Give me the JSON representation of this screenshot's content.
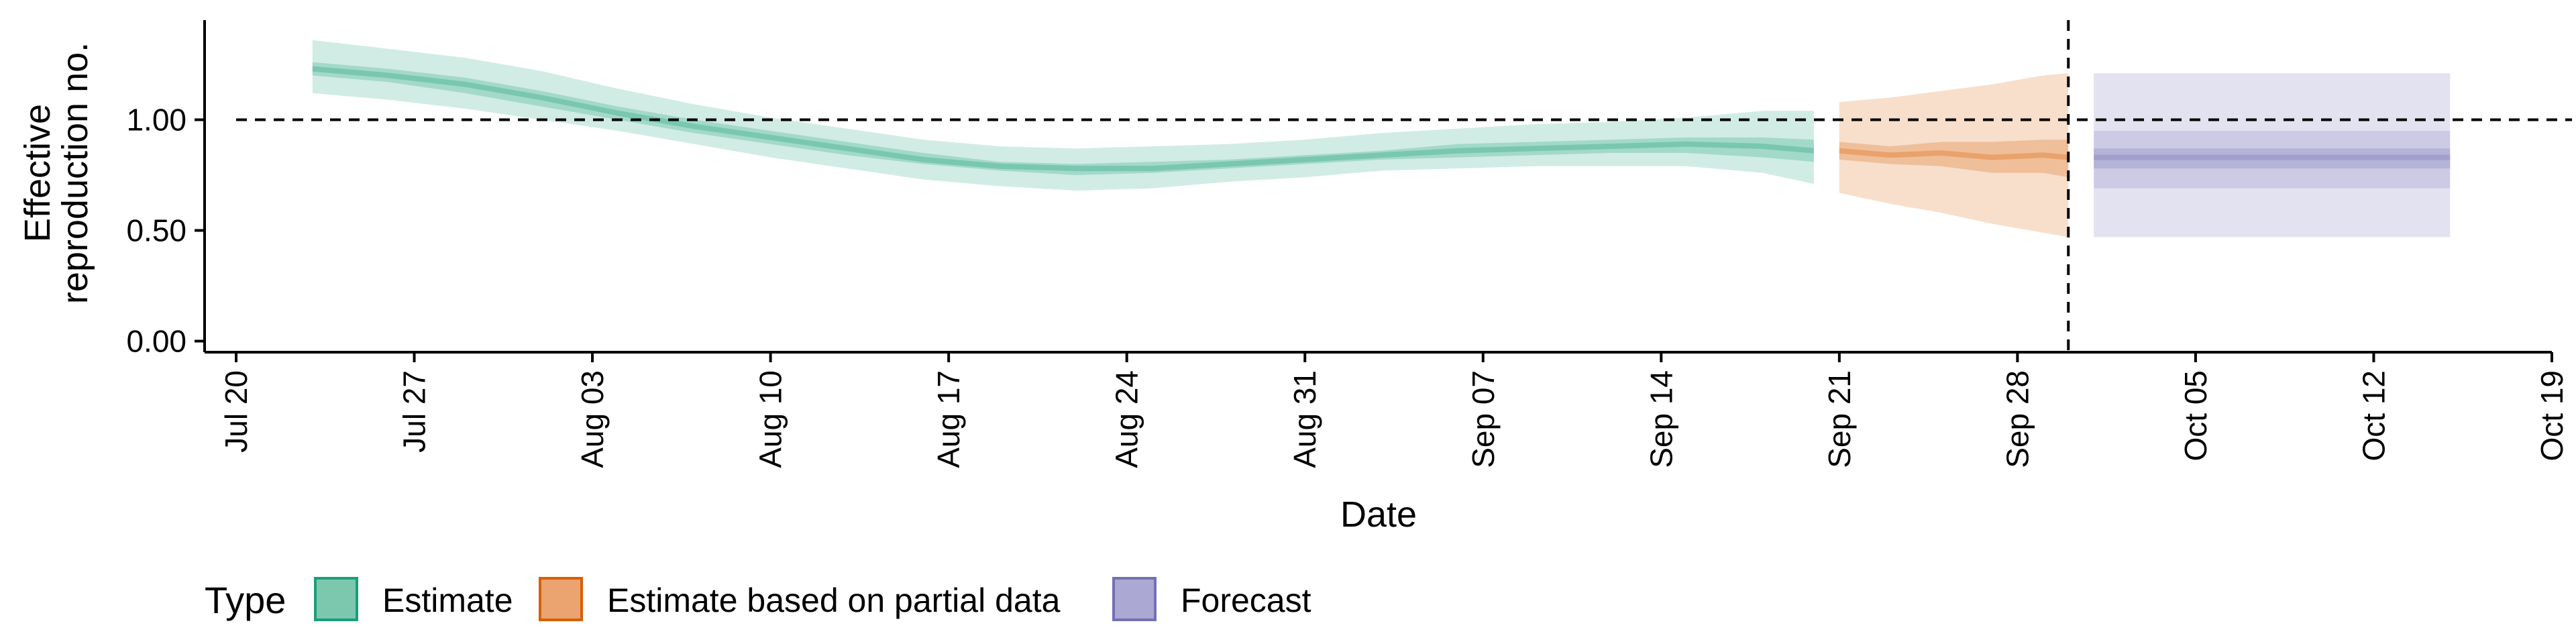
{
  "chart_data": {
    "type": "area",
    "xlabel": "Date",
    "ylabel_lines": [
      "Effective",
      "reproduction no."
    ],
    "x_ticks": [
      "Jul 20",
      "Jul 27",
      "Aug 03",
      "Aug 10",
      "Aug 17",
      "Aug 24",
      "Aug 31",
      "Sep 07",
      "Sep 14",
      "Sep 21",
      "Sep 28",
      "Oct 05",
      "Oct 12",
      "Oct 19"
    ],
    "x_tick_dates": [
      "2020-07-20",
      "2020-07-27",
      "2020-08-03",
      "2020-08-10",
      "2020-08-17",
      "2020-08-24",
      "2020-08-31",
      "2020-09-07",
      "2020-09-14",
      "2020-09-21",
      "2020-09-28",
      "2020-10-05",
      "2020-10-12",
      "2020-10-19"
    ],
    "xlim": [
      "2020-07-20",
      "2020-10-19"
    ],
    "y_ticks": [
      "0.00",
      "0.50",
      "1.00"
    ],
    "y_tick_values": [
      0,
      0.5,
      1.0
    ],
    "ylim": [
      -0.05,
      1.45
    ],
    "reference_lines": {
      "horizontal_y": 1.0,
      "vertical_x": "2020-09-30"
    },
    "grid": false,
    "legend": {
      "title": "Type",
      "position": "bottom",
      "entries": [
        {
          "label": "Estimate",
          "fill": "#7cc8ae",
          "stroke": "#1b9e77"
        },
        {
          "label": "Estimate based on partial data",
          "fill": "#eba470",
          "stroke": "#d95f02"
        },
        {
          "label": "Forecast",
          "fill": "#aba8d3",
          "stroke": "#7570b3"
        }
      ]
    },
    "series": [
      {
        "name": "Estimate",
        "color": "#1b9e77",
        "x": [
          "2020-07-23",
          "2020-07-26",
          "2020-07-29",
          "2020-08-01",
          "2020-08-04",
          "2020-08-07",
          "2020-08-10",
          "2020-08-13",
          "2020-08-16",
          "2020-08-19",
          "2020-08-22",
          "2020-08-25",
          "2020-08-28",
          "2020-08-31",
          "2020-09-03",
          "2020-09-06",
          "2020-09-09",
          "2020-09-12",
          "2020-09-15",
          "2020-09-18",
          "2020-09-20"
        ],
        "median": [
          1.23,
          1.2,
          1.16,
          1.1,
          1.03,
          0.97,
          0.92,
          0.87,
          0.82,
          0.79,
          0.78,
          0.78,
          0.8,
          0.82,
          0.84,
          0.86,
          0.87,
          0.88,
          0.89,
          0.88,
          0.86
        ],
        "lower_50": [
          1.2,
          1.17,
          1.12,
          1.06,
          1.0,
          0.94,
          0.89,
          0.84,
          0.8,
          0.77,
          0.75,
          0.76,
          0.78,
          0.8,
          0.82,
          0.83,
          0.84,
          0.85,
          0.85,
          0.83,
          0.81
        ],
        "upper_50": [
          1.26,
          1.23,
          1.19,
          1.13,
          1.06,
          1.0,
          0.95,
          0.9,
          0.85,
          0.81,
          0.8,
          0.81,
          0.82,
          0.84,
          0.86,
          0.89,
          0.9,
          0.91,
          0.92,
          0.92,
          0.91
        ],
        "lower_90": [
          1.12,
          1.09,
          1.05,
          1.0,
          0.95,
          0.89,
          0.83,
          0.78,
          0.73,
          0.7,
          0.68,
          0.69,
          0.72,
          0.74,
          0.77,
          0.78,
          0.79,
          0.79,
          0.79,
          0.76,
          0.71
        ],
        "upper_90": [
          1.36,
          1.32,
          1.28,
          1.22,
          1.14,
          1.07,
          1.01,
          0.96,
          0.91,
          0.88,
          0.87,
          0.88,
          0.89,
          0.91,
          0.94,
          0.96,
          0.98,
          0.99,
          1.01,
          1.04,
          1.04
        ]
      },
      {
        "name": "Estimate based on partial data",
        "color": "#d95f02",
        "x": [
          "2020-09-21",
          "2020-09-23",
          "2020-09-25",
          "2020-09-27",
          "2020-09-29",
          "2020-09-30"
        ],
        "median": [
          0.86,
          0.84,
          0.85,
          0.83,
          0.84,
          0.83
        ],
        "lower_50": [
          0.82,
          0.8,
          0.79,
          0.76,
          0.76,
          0.74
        ],
        "upper_50": [
          0.9,
          0.88,
          0.9,
          0.9,
          0.91,
          0.91
        ],
        "lower_90": [
          0.67,
          0.62,
          0.58,
          0.53,
          0.49,
          0.47
        ],
        "upper_90": [
          1.08,
          1.1,
          1.13,
          1.16,
          1.2,
          1.21
        ]
      },
      {
        "name": "Forecast",
        "color": "#7570b3",
        "x": [
          "2020-10-01",
          "2020-10-15"
        ],
        "median": [
          0.83,
          0.83
        ],
        "lower_50": [
          0.78,
          0.78
        ],
        "upper_50": [
          0.87,
          0.87
        ],
        "lower_90": [
          0.47,
          0.47
        ],
        "upper_90": [
          1.21,
          1.21
        ],
        "inner_band_extra": {
          "lower": 0.69,
          "upper": 0.95
        }
      }
    ]
  }
}
